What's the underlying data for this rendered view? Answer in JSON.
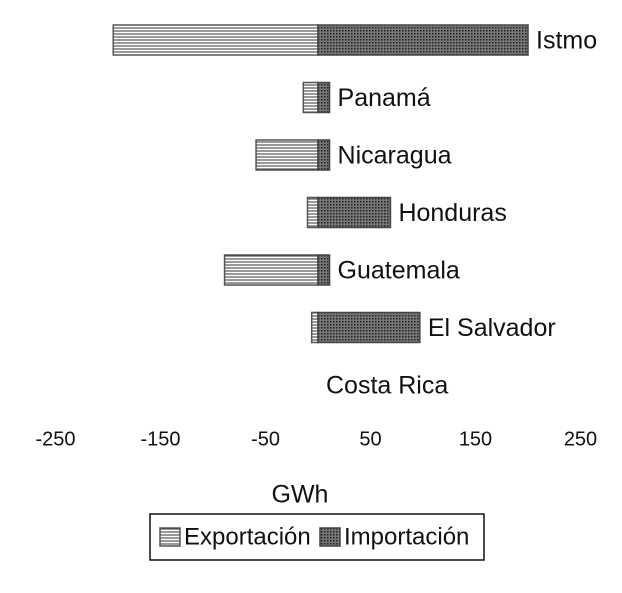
{
  "chart_data": {
    "type": "hbar",
    "categories": [
      "Istmo",
      "Panamá",
      "Nicaragua",
      "Honduras",
      "Guatemala",
      "El Salvador",
      "Costa Rica"
    ],
    "series": [
      {
        "name": "Exportación",
        "color": "#555555",
        "values": [
          -195,
          -14,
          -59,
          -10,
          -89,
          -6,
          0
        ]
      },
      {
        "name": "Importación",
        "color": "#444444",
        "values": [
          200,
          11,
          11,
          69,
          11,
          97,
          0
        ]
      }
    ],
    "xlabel": "GWh",
    "xlim": [
      -270,
      260
    ],
    "xticks": [
      -250,
      -150,
      -50,
      50,
      150,
      250
    ],
    "legend": "bottom"
  }
}
